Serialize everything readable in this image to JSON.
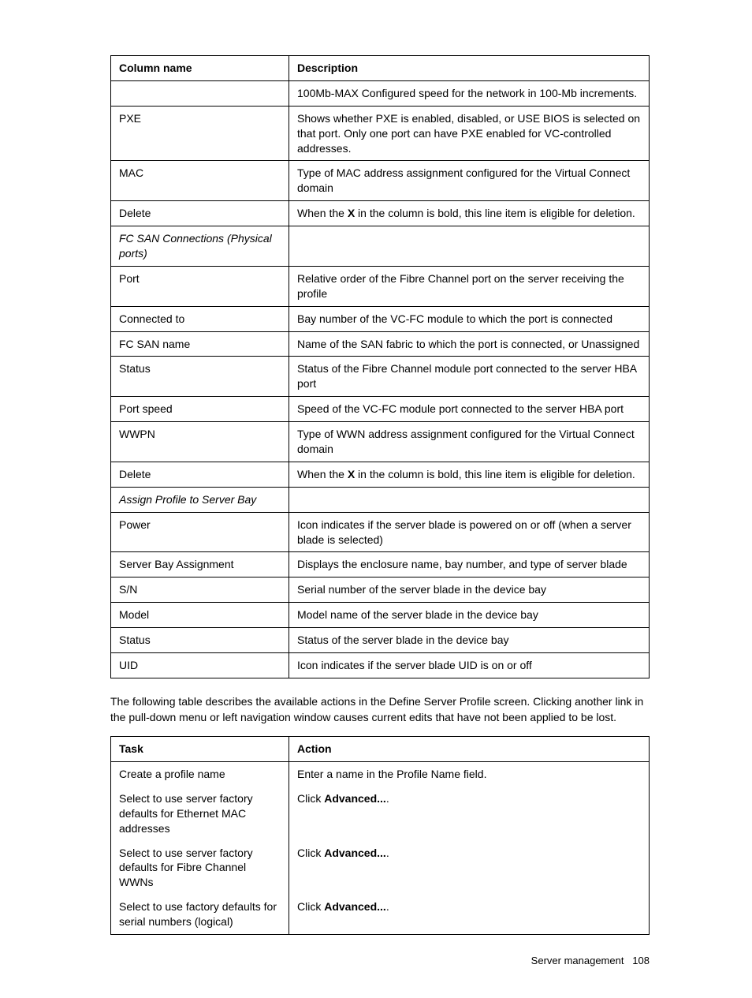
{
  "table1": {
    "headers": [
      "Column name",
      "Description"
    ],
    "rows": [
      {
        "c1": "",
        "c2": "100Mb-MAX Configured speed for the network in 100-Mb increments.",
        "topBorder": true
      },
      {
        "c1": "PXE",
        "c2": "Shows whether PXE is enabled, disabled, or USE BIOS is selected on that port. Only one port can have PXE enabled for VC-controlled addresses.",
        "topBorder": true
      },
      {
        "c1": "MAC",
        "c2": "Type of MAC address assignment configured for the Virtual Connect domain",
        "topBorder": true
      },
      {
        "c1": "Delete",
        "c2_pre": "When the ",
        "c2_bold": "X",
        "c2_post": " in the column is bold, this line item is eligible for deletion.",
        "topBorder": true,
        "hasBold": true
      },
      {
        "c1": "FC SAN Connections (Physical ports)",
        "c2": "",
        "italic": true,
        "topBorder": true
      },
      {
        "c1": "Port",
        "c2": "Relative order of the Fibre Channel port on the server receiving the profile",
        "topBorder": true
      },
      {
        "c1": "Connected to",
        "c2": "Bay number of the VC-FC module to which the port is connected",
        "topBorder": true
      },
      {
        "c1": "FC SAN name",
        "c2": "Name of the SAN fabric to which the port is connected, or Unassigned",
        "topBorder": true
      },
      {
        "c1": "Status",
        "c2": "Status of the Fibre Channel module port connected to the server HBA port",
        "topBorder": true
      },
      {
        "c1": "Port speed",
        "c2": "Speed of the VC-FC module port connected to the server HBA port",
        "topBorder": true
      },
      {
        "c1": "WWPN",
        "c2": "Type of WWN address assignment configured for the Virtual Connect domain",
        "topBorder": true
      },
      {
        "c1": "Delete",
        "c2_pre": "When the ",
        "c2_bold": "X",
        "c2_post": " in the column is bold, this line item is eligible for deletion.",
        "topBorder": true,
        "hasBold": true
      },
      {
        "c1": "Assign Profile to Server Bay",
        "c2": "",
        "italic": true,
        "topBorder": true
      },
      {
        "c1": "Power",
        "c2": "Icon indicates if the server blade is powered on or off (when a server blade is selected)",
        "topBorder": true
      },
      {
        "c1": "Server Bay Assignment",
        "c2": "Displays the enclosure name, bay number, and type of server blade",
        "topBorder": true
      },
      {
        "c1": "S/N",
        "c2": "Serial number of the server blade in the device bay",
        "topBorder": true
      },
      {
        "c1": "Model",
        "c2": "Model name of the server blade in the device bay",
        "topBorder": true
      },
      {
        "c1": "Status",
        "c2": "Status of the server blade in the device bay",
        "topBorder": true
      },
      {
        "c1": "UID",
        "c2": "Icon indicates if the server blade UID is on or off",
        "topBorder": true
      }
    ]
  },
  "paragraph": "The following table describes the available actions in the Define Server Profile screen. Clicking another link in the pull-down menu or left navigation window causes current edits that have not been applied to be lost.",
  "table2": {
    "headers": [
      "Task",
      "Action"
    ],
    "rows": [
      {
        "c1": "Create a profile name",
        "c2": "Enter a name in the Profile Name field."
      },
      {
        "c1": "Select to use server factory defaults for Ethernet MAC addresses",
        "c2_pre": "Click ",
        "c2_bold": "Advanced...",
        "c2_post": ".",
        "hasBold": true
      },
      {
        "c1": "Select to use server factory defaults for Fibre Channel WWNs",
        "c2_pre": "Click ",
        "c2_bold": "Advanced...",
        "c2_post": ".",
        "hasBold": true
      },
      {
        "c1": "Select to use factory defaults for serial numbers (logical)",
        "c2_pre": "Click ",
        "c2_bold": "Advanced...",
        "c2_post": ".",
        "hasBold": true
      }
    ]
  },
  "footer": {
    "label": "Server management",
    "page": "108"
  }
}
